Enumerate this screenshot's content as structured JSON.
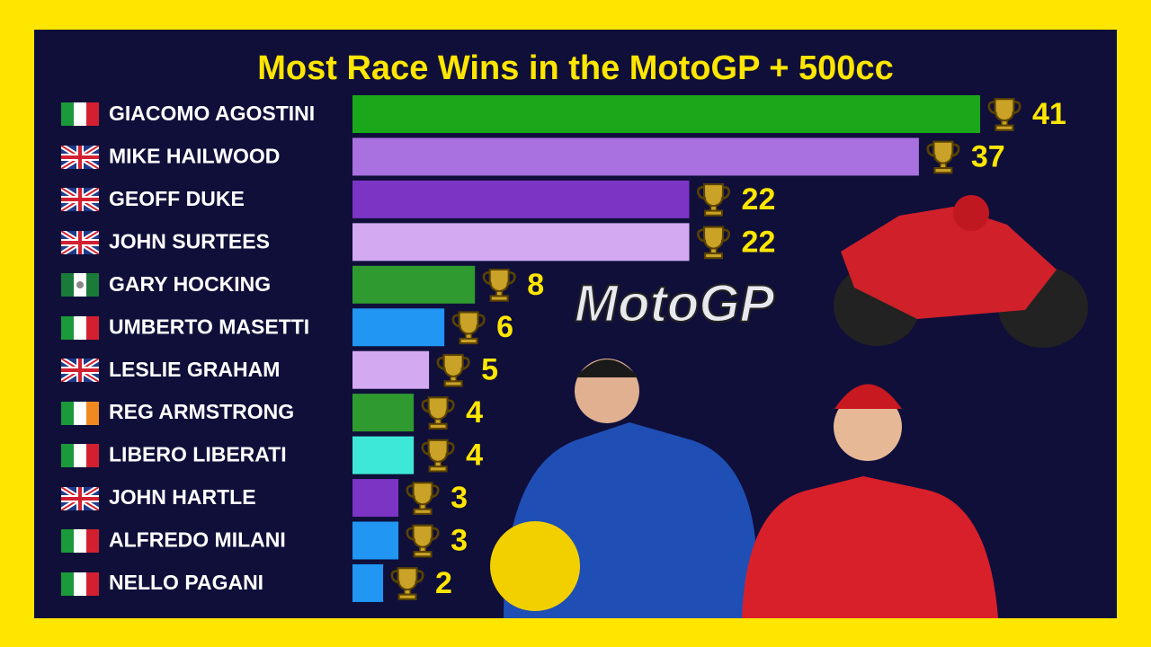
{
  "chart_data": {
    "type": "bar",
    "orientation": "horizontal",
    "title": "Most Race Wins in the MotoGP + 500cc",
    "logo": "MotoGP",
    "categories": [
      "GIACOMO AGOSTINI",
      "MIKE HAILWOOD",
      "GEOFF DUKE",
      "JOHN SURTEES",
      "GARY HOCKING",
      "UMBERTO MASETTI",
      "LESLIE GRAHAM",
      "REG ARMSTRONG",
      "LIBERO LIBERATI",
      "JOHN HARTLE",
      "ALFREDO MILANI",
      "NELLO PAGANI"
    ],
    "values": [
      41,
      37,
      22,
      22,
      8,
      6,
      5,
      4,
      4,
      3,
      3,
      2
    ],
    "colors": [
      "#1aa81a",
      "#a970e0",
      "#7b34c4",
      "#d3aaf2",
      "#2f9a2f",
      "#2196f3",
      "#d3aaf2",
      "#2f9a2f",
      "#3ee8d8",
      "#7b34c4",
      "#2196f3",
      "#2196f3"
    ]
  }
}
